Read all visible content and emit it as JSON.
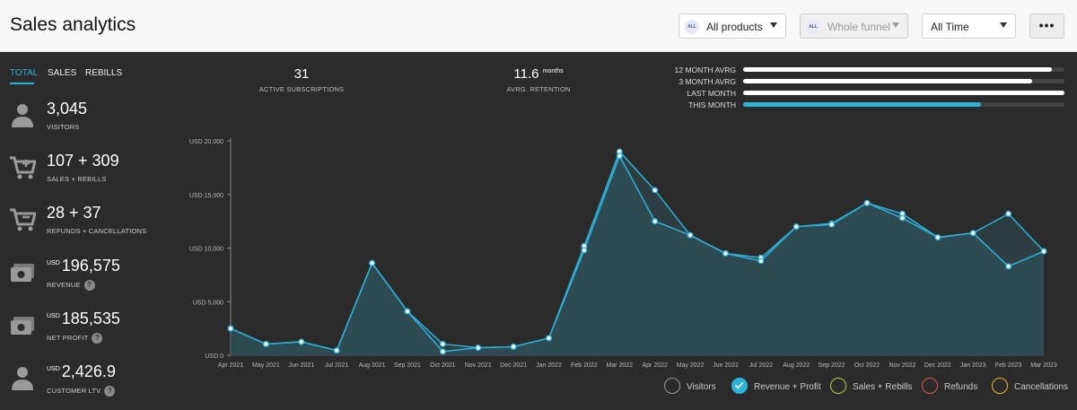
{
  "header": {
    "title": "Sales analytics",
    "products": {
      "badge": "ALL",
      "value": "All products"
    },
    "funnel": {
      "badge": "ALL",
      "value": "Whole funnel"
    },
    "period": {
      "value": "All Time"
    },
    "more_label": "•••"
  },
  "tabs": [
    "TOTAL",
    "SALES",
    "REBILLS"
  ],
  "metrics": {
    "visitors": {
      "value": "3,045",
      "label": "VISITORS",
      "icon": "person-icon"
    },
    "sales": {
      "value": "107 + 309",
      "label": "SALES + REBILLS",
      "icon": "cart-plus-icon"
    },
    "refunds": {
      "value": "28 + 37",
      "label": "REFUNDS + CANCELLATIONS",
      "icon": "cart-minus-icon"
    },
    "revenue": {
      "currency": "USD",
      "value": "196,575",
      "label": "REVENUE",
      "icon": "money-icon",
      "help": "?"
    },
    "net_profit": {
      "currency": "USD",
      "value": "185,535",
      "label": "NET PROFIT",
      "icon": "money-icon",
      "help": "?"
    },
    "ltv": {
      "currency": "USD",
      "value": "2,426.9",
      "label": "CUSTOMER LTV",
      "icon": "person-icon",
      "help": "?"
    }
  },
  "stats": {
    "active": {
      "value": "31",
      "label": "ACTIVE SUBSCRIPTIONS"
    },
    "retention": {
      "value": "11.6",
      "unit": "months",
      "label": "AVRG. RETENTION"
    }
  },
  "progress": [
    {
      "label": "12 MONTH AVRG",
      "fraction": 0.96
    },
    {
      "label": "3 MONTH AVRG",
      "fraction": 0.9
    },
    {
      "label": "LAST MONTH",
      "fraction": 1.0
    },
    {
      "label": "THIS MONTH",
      "fraction": 0.74
    }
  ],
  "colors": {
    "accent": "#2bb3da",
    "area": "#2f4f58",
    "visitors": "#9a9a9a",
    "sales": "#b5d04a",
    "refunds": "#e0524a",
    "cancellations": "#e8b928"
  },
  "legend": [
    {
      "label": "Visitors",
      "checked": false,
      "color": "#9a9a9a"
    },
    {
      "label": "Revenue + Profit",
      "checked": true,
      "color": "#2bb3da"
    },
    {
      "label": "Sales + Rebills",
      "checked": false,
      "color": "#b5d04a"
    },
    {
      "label": "Refunds",
      "checked": false,
      "color": "#e0524a"
    },
    {
      "label": "Cancellations",
      "checked": false,
      "color": "#e8b928"
    }
  ],
  "chart_data": {
    "type": "area",
    "categories": [
      "Apr 2021",
      "May 2021",
      "Jun 2021",
      "Jul 2021",
      "Aug 2021",
      "Sep 2021",
      "Oct 2021",
      "Nov 2021",
      "Dec 2021",
      "Jan 2022",
      "Feb 2022",
      "Mar 2022",
      "Apr 2022",
      "May 2022",
      "Jun 2022",
      "Jul 2022",
      "Aug 2022",
      "Sep 2022",
      "Oct 2022",
      "Nov 2022",
      "Dec 2022",
      "Jan 2023",
      "Feb 2023",
      "Mar 2023"
    ],
    "series": [
      {
        "values": [
          2500,
          1050,
          1250,
          450,
          8600,
          4100,
          1050,
          700,
          800,
          1600,
          10200,
          19000,
          15400,
          11200,
          9500,
          9100,
          12000,
          12300,
          14200,
          13200,
          11000,
          11400,
          13200,
          9700
        ]
      },
      {
        "values": [
          2500,
          1050,
          1250,
          450,
          8600,
          4100,
          350,
          700,
          800,
          1600,
          9800,
          18600,
          12500,
          11200,
          9500,
          8800,
          12000,
          12200,
          14200,
          12800,
          11000,
          11400,
          8300,
          9700
        ]
      }
    ],
    "yticks": [
      "USD 0",
      "USD 5,000",
      "USD 10,000",
      "USD 15,000",
      "USD 20,000"
    ],
    "ylim": [
      0,
      20000
    ]
  }
}
